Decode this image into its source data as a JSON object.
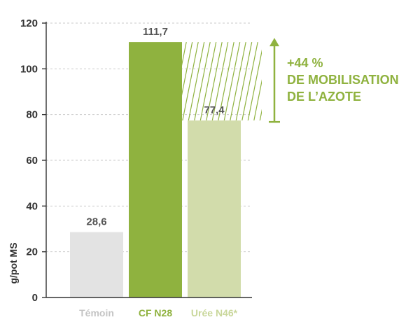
{
  "chart_data": {
    "type": "bar",
    "title": "",
    "xlabel": "",
    "ylabel": "g/pot MS",
    "ylim": [
      0,
      120
    ],
    "yticks": [
      0,
      20,
      40,
      60,
      80,
      100,
      120
    ],
    "grid": true,
    "categories": [
      "Témoin",
      "CF N28",
      "Urée N46*"
    ],
    "values": [
      28.6,
      111.7,
      77.4
    ],
    "value_labels": [
      "28,6",
      "111,7",
      "77,4"
    ],
    "colors": [
      "#e3e3e3",
      "#8fb23f",
      "#d2dcab"
    ],
    "label_colors": [
      "#c4c4c4",
      "#8fb23f",
      "#c9d79b"
    ],
    "annotation": {
      "lines": [
        "+44 %",
        "DE MOBILISATION",
        "DE L’AZOTE"
      ],
      "from_value": 77.4,
      "to_value": 111.7,
      "color": "#8fb23f"
    }
  }
}
